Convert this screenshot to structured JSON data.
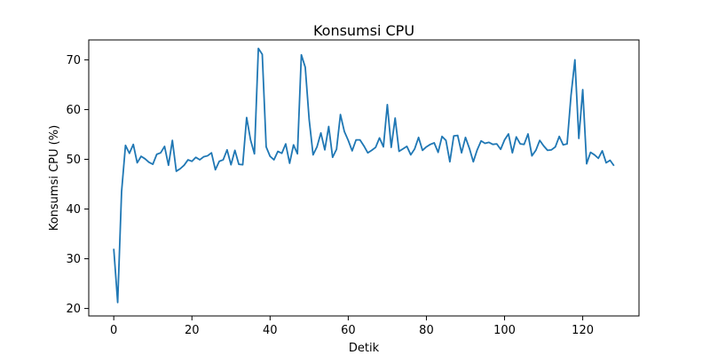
{
  "chart_data": {
    "type": "line",
    "title": "Konsumsi CPU",
    "xlabel": "Detik",
    "ylabel": "Konsumsi CPU (%)",
    "xlim": [
      -6.4,
      134.4
    ],
    "ylim": [
      18.5,
      74.0
    ],
    "xticks": [
      0,
      20,
      40,
      60,
      80,
      100,
      120
    ],
    "yticks": [
      20,
      30,
      40,
      50,
      60,
      70
    ],
    "grid": false,
    "legend": "none",
    "series": [
      {
        "color": "#1f77b4",
        "x": [
          0,
          1,
          2,
          3,
          4,
          5,
          6,
          7,
          8,
          9,
          10,
          11,
          12,
          13,
          14,
          15,
          16,
          17,
          18,
          19,
          20,
          21,
          22,
          23,
          24,
          25,
          26,
          27,
          28,
          29,
          30,
          31,
          32,
          33,
          34,
          35,
          36,
          37,
          38,
          39,
          40,
          41,
          42,
          43,
          44,
          45,
          46,
          47,
          48,
          49,
          50,
          51,
          52,
          53,
          54,
          55,
          56,
          57,
          58,
          59,
          60,
          61,
          62,
          63,
          64,
          65,
          66,
          67,
          68,
          69,
          70,
          71,
          72,
          73,
          74,
          75,
          76,
          77,
          78,
          79,
          80,
          81,
          82,
          83,
          84,
          85,
          86,
          87,
          88,
          89,
          90,
          91,
          92,
          93,
          94,
          95,
          96,
          97,
          98,
          99,
          100,
          101,
          102,
          103,
          104,
          105,
          106,
          107,
          108,
          109,
          110,
          111,
          112,
          113,
          114,
          115,
          116,
          117,
          118,
          119,
          120,
          121,
          122,
          123,
          124,
          125,
          126,
          127,
          128
        ],
        "values": [
          32.0,
          21.2,
          43.5,
          52.8,
          51.2,
          53.0,
          49.3,
          50.6,
          50.1,
          49.4,
          49.0,
          51.0,
          51.3,
          52.6,
          48.8,
          53.8,
          47.6,
          48.1,
          48.8,
          49.9,
          49.6,
          50.4,
          49.9,
          50.5,
          50.7,
          51.3,
          47.9,
          49.6,
          49.9,
          51.9,
          48.9,
          51.8,
          49.0,
          48.9,
          58.4,
          53.9,
          51.1,
          72.3,
          71.1,
          52.5,
          50.6,
          49.9,
          51.6,
          51.2,
          53.1,
          49.2,
          52.9,
          51.1,
          71.0,
          68.5,
          58.0,
          50.9,
          52.5,
          55.3,
          51.9,
          56.6,
          50.4,
          52.0,
          59.0,
          55.6,
          53.8,
          51.7,
          53.9,
          53.9,
          52.7,
          51.3,
          51.8,
          52.4,
          54.3,
          52.5,
          61.0,
          52.4,
          58.3,
          51.6,
          52.1,
          52.6,
          50.9,
          52.1,
          54.4,
          51.8,
          52.5,
          53.0,
          53.3,
          51.4,
          54.6,
          53.8,
          49.5,
          54.7,
          54.8,
          51.3,
          54.4,
          52.2,
          49.5,
          51.9,
          53.7,
          53.2,
          53.4,
          53.0,
          53.1,
          52.0,
          53.9,
          55.1,
          51.3,
          54.5,
          53.1,
          53.0,
          55.1,
          50.7,
          51.8,
          53.8,
          52.7,
          51.8,
          51.9,
          52.5,
          54.6,
          52.9,
          53.1,
          62.8,
          70.0,
          54.2,
          64.0,
          49.1,
          51.4,
          50.9,
          50.2,
          51.7,
          49.3,
          49.8,
          48.7
        ]
      }
    ]
  }
}
